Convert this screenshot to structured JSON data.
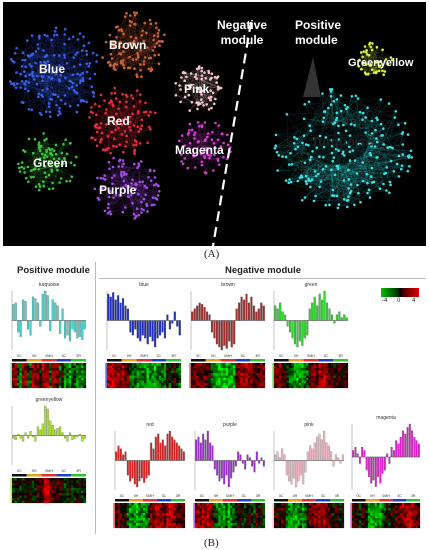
{
  "panel_a": {
    "caption": "(A)",
    "negative_label_line1": "Negative",
    "negative_label_line2": "module",
    "positive_label_line1": "Positive",
    "positive_label_line2": "module",
    "networks": [
      {
        "key": "blue",
        "label": "Blue",
        "color": "#3a5fe0"
      },
      {
        "key": "brown",
        "label": "Brown",
        "color": "#c8643c"
      },
      {
        "key": "red",
        "label": "Red",
        "color": "#e03040"
      },
      {
        "key": "pink",
        "label": "Pink",
        "color": "#f4c4cc"
      },
      {
        "key": "green",
        "label": "Green",
        "color": "#40c040"
      },
      {
        "key": "magenta",
        "label": "Magenta",
        "color": "#d040d0"
      },
      {
        "key": "purple",
        "label": "Purple",
        "color": "#a050e0"
      },
      {
        "key": "greenyellow",
        "label": "Greenyellow",
        "color": "#d8f040"
      },
      {
        "key": "turquoise",
        "label": "Turquoise",
        "color": "#40e0e0"
      }
    ]
  },
  "panel_b": {
    "caption": "(B)",
    "positive_title": "Positive module",
    "negative_title": "Negative module",
    "legend": {
      "ticks": [
        "-4",
        "0",
        "4"
      ],
      "low_color": "#00c000",
      "mid_color": "#000000",
      "high_color": "#e00000"
    },
    "sample_groups": [
      "0C",
      "0H",
      "0MH",
      "3C",
      "3R"
    ],
    "group_colors": [
      "#111111",
      "#e0a020",
      "#e03030",
      "#2040c0",
      "#30c030"
    ],
    "modules": [
      {
        "name": "turquoise",
        "color": "#50d0c8",
        "values": [
          0.55,
          0.6,
          -0.4,
          -0.55,
          0.7,
          0.65,
          -0.3,
          -0.5,
          0.8,
          0.75,
          0.6,
          -0.2,
          0.9,
          1.0,
          0.85,
          -0.35,
          0.7,
          0.6,
          0.5,
          -0.45,
          0.4,
          -0.6,
          -0.5,
          -0.7,
          -0.3,
          -0.4,
          -0.6,
          -0.55,
          -0.65,
          -0.3
        ]
      },
      {
        "name": "greenyellow",
        "color": "#a8e030",
        "values": [
          -0.1,
          -0.15,
          0.05,
          -0.1,
          -0.2,
          0.1,
          -0.1,
          0.15,
          -0.05,
          -0.2,
          0.3,
          0.2,
          0.4,
          1.0,
          0.9,
          0.5,
          0.35,
          0.2,
          0.25,
          0.3,
          0.1,
          -0.1,
          -0.2,
          0.1,
          -0.15,
          -0.1,
          -0.05,
          0.05,
          -0.2,
          -0.1
        ]
      },
      {
        "name": "blue",
        "color": "#2030c0",
        "values": [
          0.9,
          0.8,
          0.95,
          0.7,
          0.85,
          0.6,
          0.75,
          0.5,
          0.4,
          -0.4,
          -0.5,
          -0.3,
          -0.6,
          -0.7,
          -0.5,
          -0.6,
          -0.8,
          -0.55,
          -0.7,
          -0.9,
          -0.6,
          -0.5,
          -0.4,
          -0.6,
          0.2,
          -0.3,
          -0.1,
          0.3,
          -0.2,
          -0.5
        ]
      },
      {
        "name": "brown",
        "color": "#a03030",
        "values": [
          0.3,
          0.4,
          0.5,
          0.6,
          0.55,
          0.45,
          0.3,
          0.2,
          -0.4,
          -0.6,
          -0.8,
          -0.9,
          -1.0,
          -0.85,
          -0.95,
          -0.7,
          -0.9,
          -0.8,
          0.4,
          0.6,
          0.8,
          0.7,
          0.9,
          0.6,
          0.8,
          0.5,
          0.3,
          0.4,
          0.6,
          0.5
        ]
      },
      {
        "name": "green",
        "color": "#30d030",
        "values": [
          0.5,
          0.4,
          0.6,
          0.3,
          0.2,
          -0.2,
          -0.4,
          -0.6,
          -0.8,
          -0.9,
          -0.7,
          -0.85,
          -0.6,
          -0.5,
          0.4,
          0.6,
          0.8,
          0.5,
          0.9,
          0.7,
          1.0,
          0.6,
          0.4,
          0.2,
          -0.1,
          0.2,
          0.3,
          0.1,
          0.2,
          0.1
        ]
      },
      {
        "name": "red",
        "color": "#e02020",
        "values": [
          0.3,
          0.5,
          0.4,
          0.2,
          0.3,
          -0.5,
          -0.7,
          -0.6,
          -0.8,
          -0.9,
          -0.7,
          -0.6,
          -0.75,
          -0.6,
          -0.5,
          0.6,
          0.4,
          0.8,
          0.9,
          0.6,
          0.7,
          0.5,
          0.9,
          1.0,
          0.8,
          0.7,
          0.6,
          0.5,
          0.4,
          0.3
        ]
      },
      {
        "name": "purple",
        "color": "#a030d0",
        "values": [
          0.7,
          0.8,
          0.6,
          0.9,
          0.7,
          1.0,
          0.6,
          0.5,
          -0.3,
          -0.5,
          -0.7,
          -0.6,
          -0.8,
          -0.5,
          -0.9,
          -0.6,
          -0.4,
          -0.2,
          0.3,
          0.2,
          -0.1,
          -0.3,
          0.2,
          0.1,
          -0.2,
          -0.4,
          0.3,
          -0.1,
          0.1,
          -0.2
        ]
      },
      {
        "name": "pink",
        "color": "#f0b8c4",
        "values": [
          0.2,
          0.3,
          0.1,
          0.4,
          0.2,
          -0.5,
          -0.7,
          -0.8,
          -0.6,
          -0.9,
          -0.7,
          -0.5,
          -0.8,
          -0.4,
          0.3,
          0.5,
          0.4,
          0.6,
          0.8,
          0.9,
          0.7,
          1.0,
          0.6,
          0.5,
          0.3,
          -0.2,
          0.2,
          0.1,
          -0.1,
          0.2
        ]
      },
      {
        "name": "magenta",
        "color": "#e020d0",
        "values": [
          0.2,
          0.3,
          0.1,
          -0.2,
          0.3,
          0.2,
          -0.4,
          -0.6,
          -0.8,
          -0.7,
          -0.9,
          -0.6,
          -0.8,
          -0.5,
          -0.4,
          0.1,
          -0.2,
          0.3,
          0.2,
          0.5,
          0.4,
          0.6,
          0.8,
          0.7,
          0.9,
          1.0,
          0.8,
          0.6,
          0.5,
          0.4
        ]
      }
    ]
  }
}
